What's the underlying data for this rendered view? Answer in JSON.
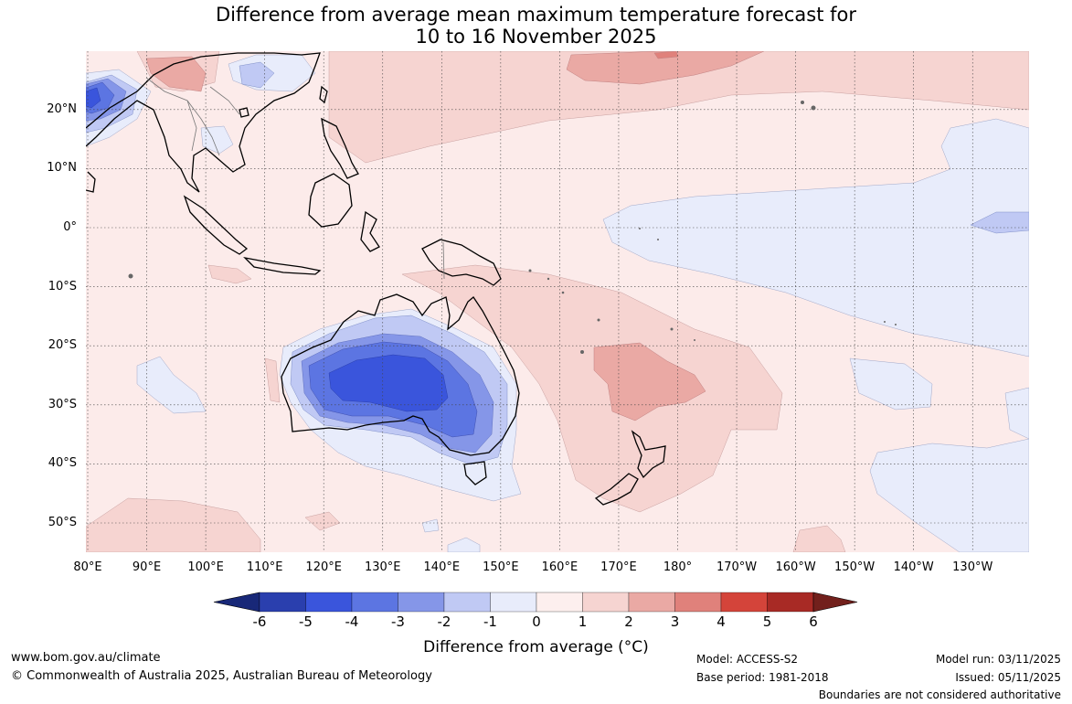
{
  "title": {
    "line1": "Difference from average mean maximum temperature forecast for",
    "line2": "10 to 16 November 2025"
  },
  "axes": {
    "x_labels": [
      "80°E",
      "90°E",
      "100°E",
      "110°E",
      "120°E",
      "130°E",
      "140°E",
      "150°E",
      "160°E",
      "170°E",
      "180°",
      "170°W",
      "160°W",
      "150°W",
      "140°W",
      "130°W"
    ],
    "y_labels": [
      "20°N",
      "10°N",
      "0°",
      "10°S",
      "20°S",
      "30°S",
      "40°S",
      "50°S"
    ]
  },
  "colorbar": {
    "ticks": [
      "-6",
      "-5",
      "-4",
      "-3",
      "-2",
      "-1",
      "0",
      "1",
      "2",
      "3",
      "4",
      "5",
      "6"
    ],
    "colors": [
      "#182878",
      "#2a3fae",
      "#3a55dc",
      "#5c75e2",
      "#8596e8",
      "#c0c9f4",
      "#e8ecfb",
      "#fdefee",
      "#f6d4d1",
      "#eaa9a4",
      "#e0817b",
      "#d4443a",
      "#a82a25",
      "#72201c"
    ],
    "title": "Difference from average (°C)"
  },
  "footer": {
    "website": "www.bom.gov.au/climate",
    "copyright": "© Commonwealth of Australia 2025, Australian Bureau of Meteorology",
    "model": "Model: ACCESS-S2",
    "base_period": "Base period: 1981-2018",
    "model_run": "Model run: 03/11/2025",
    "issued": "Issued: 05/11/2025",
    "disclaimer": "Boundaries are not considered authoritative"
  }
}
